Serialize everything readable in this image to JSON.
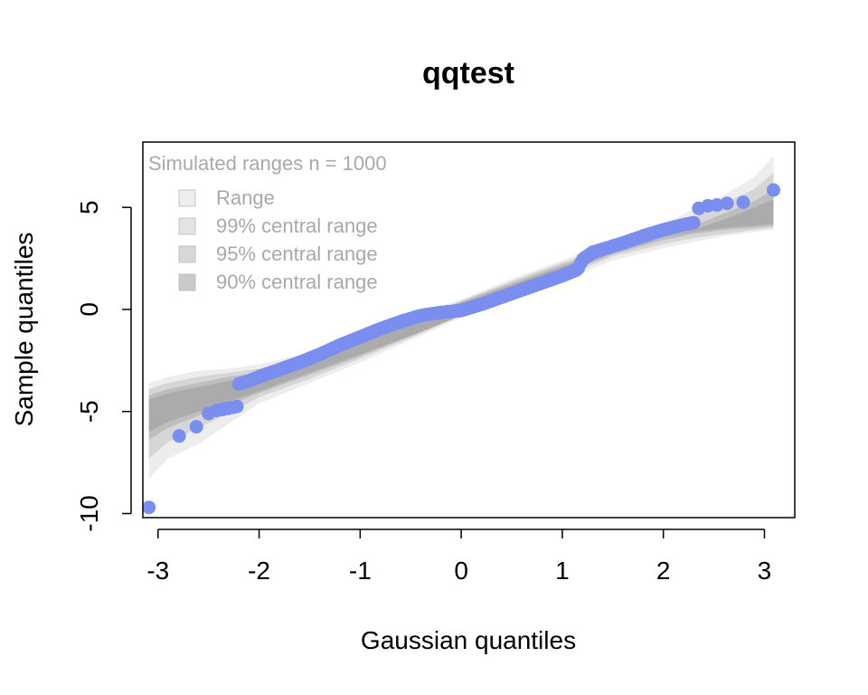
{
  "chart_data": {
    "type": "scatter",
    "title": "qqtest",
    "xlabel": "Gaussian quantiles",
    "ylabel": "Sample quantiles",
    "xlim": [
      -3.15,
      3.3
    ],
    "ylim": [
      -10.2,
      8.2
    ],
    "x_ticks": [
      -3,
      -2,
      -1,
      0,
      1,
      2,
      3
    ],
    "x_tick_labels": [
      "-3",
      "-2",
      "-1",
      "0",
      "1",
      "2",
      "3"
    ],
    "y_ticks": [
      -10,
      -5,
      0,
      5
    ],
    "y_tick_labels": [
      "-10",
      "-5",
      "0",
      "5"
    ],
    "point_color": "#7a8ef0",
    "band_color": "#9a9a9a",
    "legend": {
      "title": "Simulated ranges n = 1000",
      "position": "top-left",
      "items": [
        {
          "label": "Range",
          "opacity": 0.18
        },
        {
          "label": "99% central range",
          "opacity": 0.28
        },
        {
          "label": "95% central range",
          "opacity": 0.4
        },
        {
          "label": "90% central range",
          "opacity": 0.52
        }
      ]
    },
    "bands": {
      "x": [
        -3.09,
        -2.9,
        -2.6,
        -2.3,
        -2.0,
        -1.5,
        -1.0,
        -0.5,
        0.0,
        0.5,
        1.0,
        1.5,
        2.0,
        2.3,
        2.6,
        2.9,
        3.09
      ],
      "levels": [
        {
          "name": "Range",
          "lower": [
            -8.3,
            -7.3,
            -6.6,
            -5.6,
            -4.6,
            -3.6,
            -2.6,
            -1.5,
            -0.4,
            0.6,
            1.4,
            2.4,
            3.0,
            3.3,
            3.6,
            3.8,
            3.9
          ],
          "upper": [
            -3.6,
            -3.3,
            -3.0,
            -2.9,
            -2.7,
            -2.1,
            -1.3,
            -0.4,
            0.5,
            1.5,
            2.4,
            3.4,
            4.2,
            4.9,
            5.6,
            6.5,
            7.5
          ]
        },
        {
          "name": "99% central range",
          "lower": [
            -7.3,
            -6.5,
            -5.8,
            -5.1,
            -4.3,
            -3.4,
            -2.4,
            -1.4,
            -0.3,
            0.7,
            1.6,
            2.6,
            3.2,
            3.5,
            3.7,
            3.9,
            4.0
          ],
          "upper": [
            -3.9,
            -3.6,
            -3.3,
            -3.1,
            -2.9,
            -2.3,
            -1.5,
            -0.5,
            0.4,
            1.4,
            2.3,
            3.2,
            3.9,
            4.5,
            5.2,
            5.9,
            6.7
          ]
        },
        {
          "name": "95% central range",
          "lower": [
            -6.4,
            -5.8,
            -5.2,
            -4.7,
            -4.1,
            -3.2,
            -2.3,
            -1.3,
            -0.3,
            0.7,
            1.7,
            2.7,
            3.4,
            3.7,
            3.9,
            4.0,
            4.1
          ],
          "upper": [
            -4.2,
            -3.9,
            -3.6,
            -3.3,
            -3.1,
            -2.5,
            -1.6,
            -0.6,
            0.4,
            1.3,
            2.2,
            3.0,
            3.6,
            4.1,
            4.7,
            5.3,
            5.9
          ]
        },
        {
          "name": "90% central range",
          "lower": [
            -6.0,
            -5.5,
            -5.0,
            -4.5,
            -4.0,
            -3.1,
            -2.2,
            -1.3,
            -0.3,
            0.7,
            1.7,
            2.8,
            3.5,
            3.8,
            4.0,
            4.1,
            4.2
          ],
          "upper": [
            -4.4,
            -4.1,
            -3.8,
            -3.5,
            -3.2,
            -2.6,
            -1.7,
            -0.7,
            0.3,
            1.2,
            2.1,
            2.9,
            3.5,
            3.9,
            4.4,
            5.0,
            5.4
          ]
        }
      ]
    },
    "points": {
      "outliers_low": [
        [
          -3.09,
          -9.7
        ],
        [
          -2.79,
          -6.2
        ],
        [
          -2.62,
          -5.75
        ],
        [
          -2.5,
          -5.1
        ],
        [
          -2.42,
          -4.95
        ],
        [
          -2.36,
          -4.9
        ],
        [
          -2.31,
          -4.85
        ],
        [
          -2.26,
          -4.8
        ],
        [
          -2.22,
          -4.75
        ]
      ],
      "outliers_high": [
        [
          2.35,
          4.95
        ],
        [
          2.44,
          5.08
        ],
        [
          2.53,
          5.12
        ],
        [
          2.63,
          5.2
        ],
        [
          2.79,
          5.25
        ],
        [
          3.09,
          5.85
        ]
      ],
      "main_curve_x": [
        -2.2,
        -2.1,
        -2.0,
        -1.8,
        -1.6,
        -1.4,
        -1.2,
        -1.0,
        -0.8,
        -0.6,
        -0.4,
        -0.2,
        0.0,
        0.2,
        0.4,
        0.6,
        0.8,
        1.0,
        1.15,
        1.2,
        1.3,
        1.4,
        1.6,
        1.8,
        2.0,
        2.2,
        2.3
      ],
      "main_curve_y": [
        -3.65,
        -3.5,
        -3.3,
        -2.95,
        -2.6,
        -2.2,
        -1.75,
        -1.35,
        -0.95,
        -0.6,
        -0.3,
        -0.15,
        -0.05,
        0.25,
        0.6,
        0.95,
        1.3,
        1.65,
        1.95,
        2.45,
        2.8,
        2.95,
        3.25,
        3.6,
        3.9,
        4.15,
        4.25
      ],
      "main_count": 190
    }
  }
}
